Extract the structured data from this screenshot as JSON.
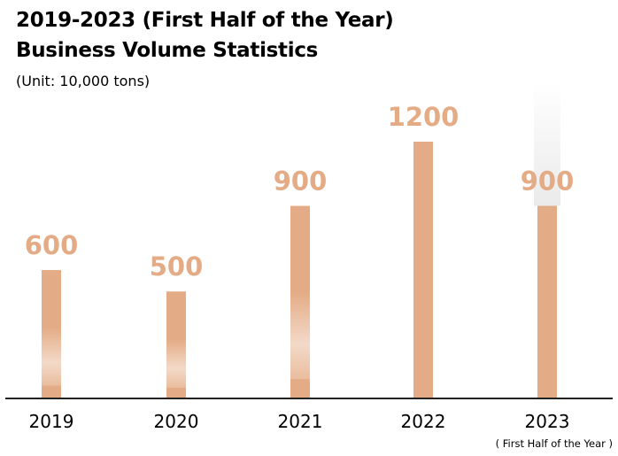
{
  "header": {
    "title_line1": "2019-2023 (First Half of the Year)",
    "title_line2": "Business Volume Statistics",
    "unit": "(Unit: 10,000 tons)"
  },
  "colors": {
    "bar": "#e4ac86",
    "value_label": "#e4ac86",
    "axis": "#222222"
  },
  "chart_data": {
    "type": "bar",
    "categories": [
      "2019",
      "2020",
      "2021",
      "2022",
      "2023"
    ],
    "values": [
      600,
      500,
      900,
      1200,
      900
    ],
    "value_labels": [
      "600",
      "500",
      "900",
      "1200",
      "900"
    ],
    "title": "2019-2023 (First Half of the Year) Business Volume Statistics",
    "ylabel": "(Unit: 10,000 tons)",
    "ylim": [
      0,
      1200
    ],
    "grid": false,
    "legend": "none",
    "annotations": [
      "( First Half of the Year )"
    ]
  }
}
